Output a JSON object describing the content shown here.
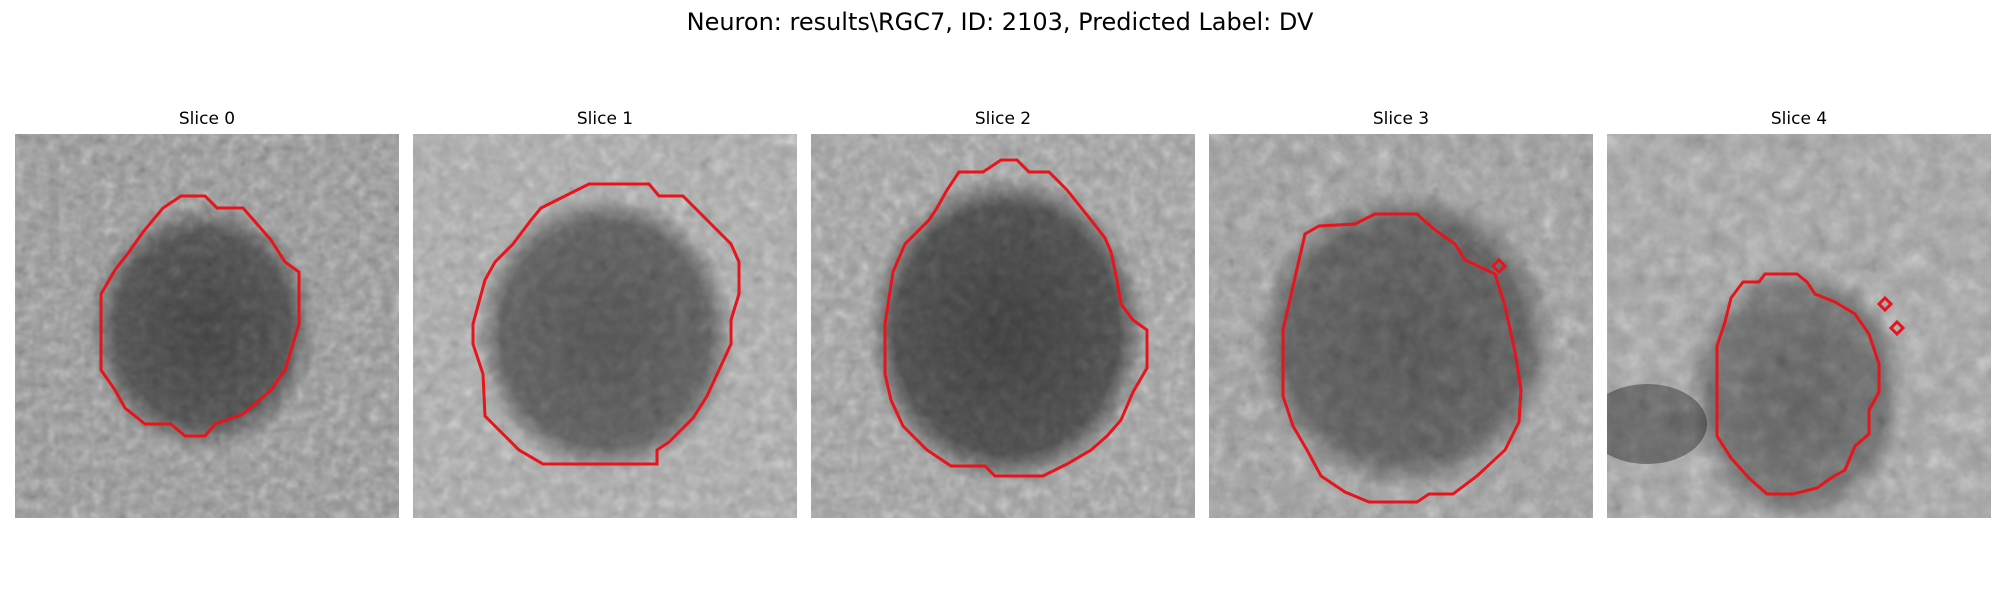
{
  "figure": {
    "title": "Neuron: results\\RGC7, ID: 2103, Predicted Label: DV"
  },
  "slices": [
    {
      "title": "Slice 0"
    },
    {
      "title": "Slice 1"
    },
    {
      "title": "Slice 2"
    },
    {
      "title": "Slice 3"
    },
    {
      "title": "Slice 4"
    }
  ],
  "colors": {
    "contour": "#e8141c",
    "background": "#ffffff"
  }
}
